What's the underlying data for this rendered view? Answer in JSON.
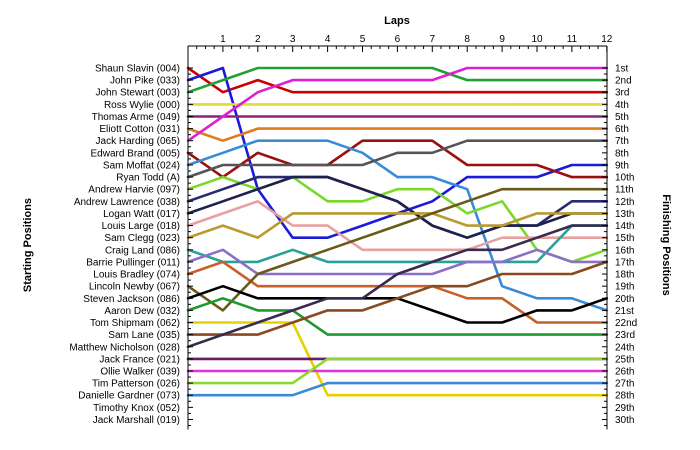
{
  "chart_data": {
    "type": "line",
    "title": "",
    "xlabel": "Laps",
    "ylabel_left": "Starting Positions",
    "ylabel_right": "Finishing Positions",
    "x": [
      0,
      1,
      2,
      3,
      4,
      5,
      6,
      7,
      8,
      9,
      10,
      11,
      12
    ],
    "x_tick_labels": [
      "1",
      "2",
      "3",
      "4",
      "5",
      "6",
      "7",
      "8",
      "9",
      "10",
      "11",
      "12"
    ],
    "finishing_labels": [
      "1st",
      "2nd",
      "3rd",
      "4th",
      "5th",
      "6th",
      "7th",
      "8th",
      "9th",
      "10th",
      "11th",
      "12th",
      "13th",
      "14th",
      "15th",
      "16th",
      "17th",
      "18th",
      "19th",
      "20th",
      "21st",
      "22nd",
      "23rd",
      "24th",
      "25th",
      "26th",
      "27th",
      "28th",
      "29th",
      "30th"
    ],
    "y_inverted": true,
    "ylim": [
      1,
      30
    ],
    "grid": false,
    "series": [
      {
        "name": "Shaun Slavin (004)",
        "color": "#cc0000",
        "positions": [
          1,
          3,
          2,
          3,
          3,
          3,
          3,
          3,
          3,
          3,
          3,
          3,
          3
        ]
      },
      {
        "name": "John Pike (033)",
        "color": "#1a1ad9",
        "positions": [
          2,
          1,
          11,
          15,
          15,
          14,
          13,
          12,
          10,
          10,
          10,
          9,
          9
        ]
      },
      {
        "name": "John Stewart (003)",
        "color": "#22a032",
        "positions": [
          3,
          2,
          1,
          1,
          1,
          1,
          1,
          1,
          2,
          2,
          2,
          2,
          2
        ]
      },
      {
        "name": "Ross Wylie (000)",
        "color": "#e6d830",
        "positions": [
          4,
          4,
          4,
          4,
          4,
          4,
          4,
          4,
          4,
          4,
          4,
          4,
          4
        ]
      },
      {
        "name": "Thomas Arme (049)",
        "color": "#8a2080",
        "positions": [
          5,
          5,
          5,
          5,
          5,
          5,
          5,
          5,
          5,
          5,
          5,
          5,
          5
        ]
      },
      {
        "name": "Eliott Cotton (031)",
        "color": "#e07a1e",
        "positions": [
          6,
          7,
          6,
          6,
          6,
          6,
          6,
          6,
          6,
          6,
          6,
          6,
          6
        ]
      },
      {
        "name": "Jack Harding (065)",
        "color": "#e020d0",
        "positions": [
          7,
          5,
          3,
          2,
          2,
          2,
          2,
          2,
          1,
          1,
          1,
          1,
          1
        ]
      },
      {
        "name": "Edward Brand (005)",
        "color": "#9a1010",
        "positions": [
          8,
          10,
          8,
          9,
          9,
          7,
          7,
          7,
          9,
          9,
          9,
          10,
          10
        ]
      },
      {
        "name": "Sam Moffat (024)",
        "color": "#3a8ad8",
        "positions": [
          9,
          8,
          7,
          7,
          7,
          8,
          10,
          10,
          11,
          19,
          20,
          20,
          21
        ]
      },
      {
        "name": "Ryan Todd (A)",
        "color": "#555555",
        "positions": [
          10,
          9,
          9,
          9,
          9,
          9,
          8,
          8,
          7,
          7,
          7,
          7,
          7
        ]
      },
      {
        "name": "Andrew Harvie (097)",
        "color": "#7ad82a",
        "positions": [
          11,
          10,
          11,
          10,
          12,
          12,
          11,
          11,
          13,
          12,
          16,
          17,
          16
        ]
      },
      {
        "name": "Andrew Lawrence (038)",
        "color": "#2a2a70",
        "positions": [
          12,
          11,
          10,
          10,
          10,
          11,
          12,
          14,
          15,
          14,
          14,
          12,
          12
        ]
      },
      {
        "name": "Logan Watt (017)",
        "color": "#202050",
        "positions": [
          13,
          12,
          11,
          10,
          10,
          11,
          12,
          14,
          15,
          14,
          14,
          13,
          13
        ]
      },
      {
        "name": "Louis Large (018)",
        "color": "#e8a0a0",
        "positions": [
          14,
          13,
          12,
          14,
          14,
          16,
          16,
          16,
          16,
          15,
          15,
          15,
          15
        ]
      },
      {
        "name": "Sam Clegg (023)",
        "color": "#b89a30",
        "positions": [
          15,
          14,
          15,
          13,
          13,
          13,
          13,
          13,
          14,
          14,
          13,
          13,
          13
        ]
      },
      {
        "name": "Craig Land (086)",
        "color": "#2aa098",
        "positions": [
          16,
          17,
          17,
          16,
          17,
          17,
          17,
          17,
          17,
          17,
          17,
          14,
          14
        ]
      },
      {
        "name": "Barrie Pullinger (011)",
        "color": "#8a70c8",
        "positions": [
          17,
          16,
          18,
          18,
          18,
          18,
          18,
          18,
          17,
          17,
          16,
          17,
          17
        ]
      },
      {
        "name": "Louis Bradley (074)",
        "color": "#c8602a",
        "positions": [
          18,
          17,
          19,
          19,
          19,
          19,
          19,
          19,
          20,
          20,
          22,
          22,
          22
        ]
      },
      {
        "name": "Lincoln Newby (067)",
        "color": "#6a5a1a",
        "positions": [
          19,
          21,
          18,
          17,
          16,
          15,
          14,
          13,
          12,
          11,
          11,
          11,
          11
        ]
      },
      {
        "name": "Steven Jackson (086)",
        "color": "#000000",
        "positions": [
          20,
          19,
          20,
          20,
          20,
          20,
          20,
          21,
          22,
          22,
          21,
          21,
          20
        ]
      },
      {
        "name": "Aaron Dew (032)",
        "color": "#1e9a2e",
        "positions": [
          21,
          20,
          21,
          21,
          23,
          23,
          23,
          23,
          23,
          23,
          23,
          23,
          23
        ]
      },
      {
        "name": "Tom Shipmam (062)",
        "color": "#e8d000",
        "positions": [
          22,
          22,
          22,
          22,
          28,
          28,
          28,
          28,
          28,
          28,
          28,
          28,
          28
        ]
      },
      {
        "name": "Sam Lane (035)",
        "color": "#8a4a20",
        "positions": [
          23,
          23,
          23,
          22,
          21,
          21,
          20,
          19,
          19,
          18,
          18,
          18,
          17
        ]
      },
      {
        "name": "Matthew Nicholson (028)",
        "color": "#3a2a50",
        "positions": [
          24,
          23,
          22,
          21,
          20,
          20,
          18,
          17,
          16,
          16,
          15,
          14,
          14
        ]
      },
      {
        "name": "Jack France (021)",
        "color": "#6a1a6a",
        "positions": [
          25,
          25,
          25,
          25,
          25,
          25,
          25,
          25,
          25,
          25,
          25,
          25,
          25
        ]
      },
      {
        "name": "Ollie Walker (039)",
        "color": "#e030e0",
        "positions": [
          26,
          26,
          26,
          26,
          26,
          26,
          26,
          26,
          26,
          26,
          26,
          26,
          26
        ]
      },
      {
        "name": "Tim Patterson (026)",
        "color": "#8ad830",
        "positions": [
          27,
          27,
          27,
          27,
          25,
          25,
          25,
          25,
          25,
          25,
          25,
          25,
          25
        ]
      },
      {
        "name": "Danielle Gardner (073)",
        "color": "#3a8ad8",
        "positions": [
          28,
          28,
          28,
          28,
          27,
          27,
          27,
          27,
          27,
          27,
          27,
          27,
          27
        ]
      },
      {
        "name": "Timothy Knox (052)",
        "color": "#ffffff",
        "positions": []
      },
      {
        "name": "Jack Marshall (019)",
        "color": "#ffffff",
        "positions": []
      }
    ]
  }
}
